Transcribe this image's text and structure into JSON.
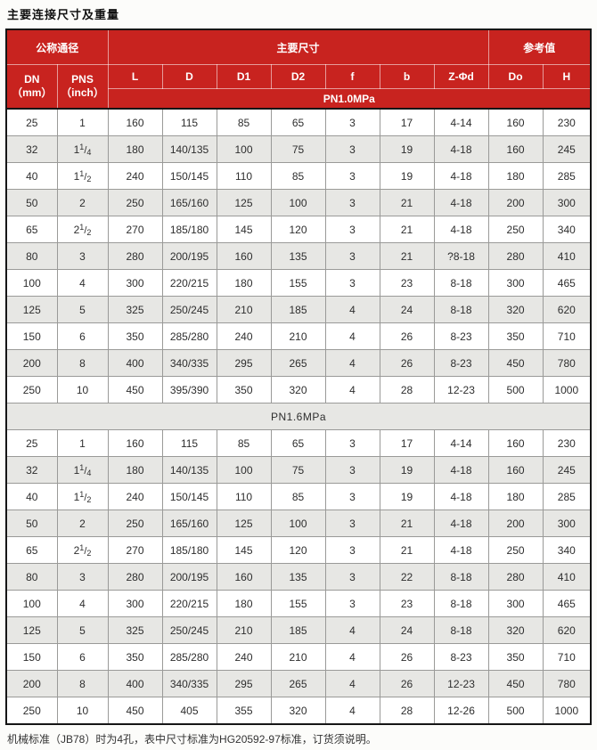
{
  "page": {
    "title": "主要连接尺寸及重量",
    "footnote": "机械标准（JB78）时为4孔，表中尺寸标准为HG20592-97标准，订货须说明。"
  },
  "colors": {
    "header_red": "#c8231f",
    "header_text": "#ffffff",
    "row_alt_gray": "#e7e7e4",
    "grid_line": "#9a9a98",
    "outer_border": "#151515"
  },
  "table": {
    "header": {
      "groups": [
        {
          "label": "公称通径",
          "span": 2
        },
        {
          "label": "主要尺寸",
          "span": 7
        },
        {
          "label": "参考值",
          "span": 2
        }
      ],
      "dn": {
        "line1": "DN",
        "line2": "（mm）"
      },
      "pns": {
        "line1": "PNS",
        "line2": "（inch）"
      },
      "dim_cols": [
        "L",
        "D",
        "D1",
        "D2",
        "f",
        "b",
        "Z-Φd",
        "Do",
        "H"
      ]
    },
    "sections": [
      {
        "label": "PN1.0MPa",
        "separator": false,
        "rows": [
          [
            "25",
            "1",
            "160",
            "115",
            "85",
            "65",
            "3",
            "17",
            "4-14",
            "160",
            "230"
          ],
          [
            "32",
            "1 1/4",
            "180",
            "140/135",
            "100",
            "75",
            "3",
            "19",
            "4-18",
            "160",
            "245"
          ],
          [
            "40",
            "1 1/2",
            "240",
            "150/145",
            "110",
            "85",
            "3",
            "19",
            "4-18",
            "180",
            "285"
          ],
          [
            "50",
            "2",
            "250",
            "165/160",
            "125",
            "100",
            "3",
            "21",
            "4-18",
            "200",
            "300"
          ],
          [
            "65",
            "2 1/2",
            "270",
            "185/180",
            "145",
            "120",
            "3",
            "21",
            "4-18",
            "250",
            "340"
          ],
          [
            "80",
            "3",
            "280",
            "200/195",
            "160",
            "135",
            "3",
            "21",
            "?8-18",
            "280",
            "410"
          ],
          [
            "100",
            "4",
            "300",
            "220/215",
            "180",
            "155",
            "3",
            "23",
            "8-18",
            "300",
            "465"
          ],
          [
            "125",
            "5",
            "325",
            "250/245",
            "210",
            "185",
            "4",
            "24",
            "8-18",
            "320",
            "620"
          ],
          [
            "150",
            "6",
            "350",
            "285/280",
            "240",
            "210",
            "4",
            "26",
            "8-23",
            "350",
            "710"
          ],
          [
            "200",
            "8",
            "400",
            "340/335",
            "295",
            "265",
            "4",
            "26",
            "8-23",
            "450",
            "780"
          ],
          [
            "250",
            "10",
            "450",
            "395/390",
            "350",
            "320",
            "4",
            "28",
            "12-23",
            "500",
            "1000"
          ]
        ]
      },
      {
        "label": "PN1.6MPa",
        "separator": true,
        "rows": [
          [
            "25",
            "1",
            "160",
            "115",
            "85",
            "65",
            "3",
            "17",
            "4-14",
            "160",
            "230"
          ],
          [
            "32",
            "1 1/4",
            "180",
            "140/135",
            "100",
            "75",
            "3",
            "19",
            "4-18",
            "160",
            "245"
          ],
          [
            "40",
            "1 1/2",
            "240",
            "150/145",
            "110",
            "85",
            "3",
            "19",
            "4-18",
            "180",
            "285"
          ],
          [
            "50",
            "2",
            "250",
            "165/160",
            "125",
            "100",
            "3",
            "21",
            "4-18",
            "200",
            "300"
          ],
          [
            "65",
            "2 1/2",
            "270",
            "185/180",
            "145",
            "120",
            "3",
            "21",
            "4-18",
            "250",
            "340"
          ],
          [
            "80",
            "3",
            "280",
            "200/195",
            "160",
            "135",
            "3",
            "22",
            "8-18",
            "280",
            "410"
          ],
          [
            "100",
            "4",
            "300",
            "220/215",
            "180",
            "155",
            "3",
            "23",
            "8-18",
            "300",
            "465"
          ],
          [
            "125",
            "5",
            "325",
            "250/245",
            "210",
            "185",
            "4",
            "24",
            "8-18",
            "320",
            "620"
          ],
          [
            "150",
            "6",
            "350",
            "285/280",
            "240",
            "210",
            "4",
            "26",
            "8-23",
            "350",
            "710"
          ],
          [
            "200",
            "8",
            "400",
            "340/335",
            "295",
            "265",
            "4",
            "26",
            "12-23",
            "450",
            "780"
          ],
          [
            "250",
            "10",
            "450",
            "405",
            "355",
            "320",
            "4",
            "28",
            "12-26",
            "500",
            "1000"
          ]
        ]
      }
    ]
  }
}
